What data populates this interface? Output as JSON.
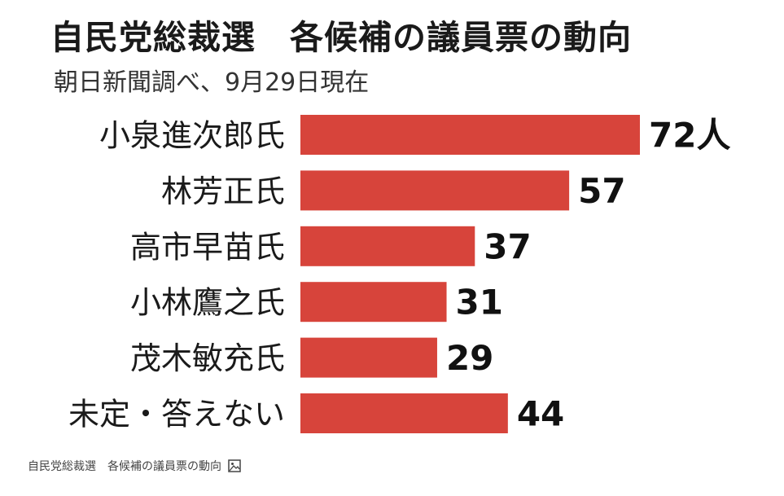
{
  "chart_data": {
    "type": "bar",
    "orientation": "horizontal",
    "title": "自民党総裁選　各候補の議員票の動向",
    "subtitle": "朝日新聞調べ、9月29日現在",
    "categories": [
      "小泉進次郎氏",
      "林芳正氏",
      "高市早苗氏",
      "小林鷹之氏",
      "茂木敏充氏",
      "未定・答えない"
    ],
    "values": [
      72,
      57,
      37,
      31,
      29,
      44
    ],
    "value_labels": [
      "72人",
      "57",
      "37",
      "31",
      "29",
      "44"
    ],
    "bar_color": "#d7443b",
    "grid": false,
    "legend": "none"
  },
  "caption": {
    "text": "自民党総裁選　各候補の議員票の動向",
    "icon": "image-icon"
  }
}
